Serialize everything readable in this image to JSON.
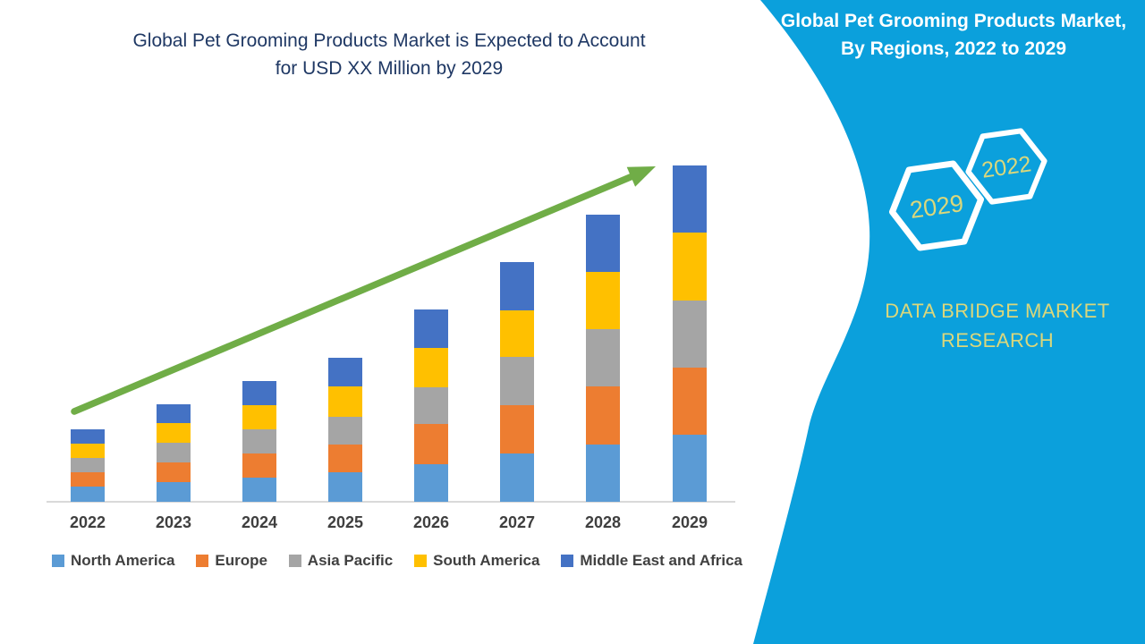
{
  "left_chart": {
    "title_line1": "Global Pet Grooming Products Market is Expected to Account",
    "title_line2": "for USD XX Million by 2029",
    "title_color": "#1F3864"
  },
  "chart_data": {
    "type": "bar",
    "stacked": true,
    "title": "Global Pet Grooming Products Market is Expected to Account for USD XX Million by 2029",
    "categories": [
      "2022",
      "2023",
      "2024",
      "2025",
      "2026",
      "2027",
      "2028",
      "2029"
    ],
    "series": [
      {
        "name": "North America",
        "color": "#5B9BD5",
        "values": [
          17,
          22,
          27,
          33,
          42,
          54,
          64,
          75
        ]
      },
      {
        "name": "Europe",
        "color": "#ED7D31",
        "values": [
          16,
          22,
          27,
          31,
          45,
          54,
          65,
          75
        ]
      },
      {
        "name": "Asia Pacific",
        "color": "#A5A5A5",
        "values": [
          16,
          22,
          27,
          31,
          41,
          54,
          64,
          75
        ]
      },
      {
        "name": "South America",
        "color": "#FFC000",
        "values": [
          16,
          22,
          27,
          34,
          44,
          52,
          64,
          76
        ]
      },
      {
        "name": "Middle East and Africa",
        "color": "#4472C4",
        "values": [
          16,
          21,
          27,
          32,
          43,
          54,
          64,
          75
        ]
      }
    ],
    "value_axis": "hidden (no y-axis shown; values are relative units, USD XX Million)",
    "xlabel": "",
    "ylabel": "",
    "grid": false,
    "legend_position": "bottom",
    "trend_arrow": {
      "color": "#70AD47",
      "from_category": "2022",
      "to_category": "2029"
    }
  },
  "right_panel": {
    "background_color": "#0BA0DC",
    "title_line1": "Global Pet Grooming Products Market,",
    "title_line2": "By Regions, 2022 to 2029",
    "hexagons": [
      {
        "label": "2022"
      },
      {
        "label": "2029"
      }
    ],
    "brand_line1": "DATA BRIDGE MARKET",
    "brand_line2": "RESEARCH",
    "accent_text_color": "#DBD77B"
  }
}
